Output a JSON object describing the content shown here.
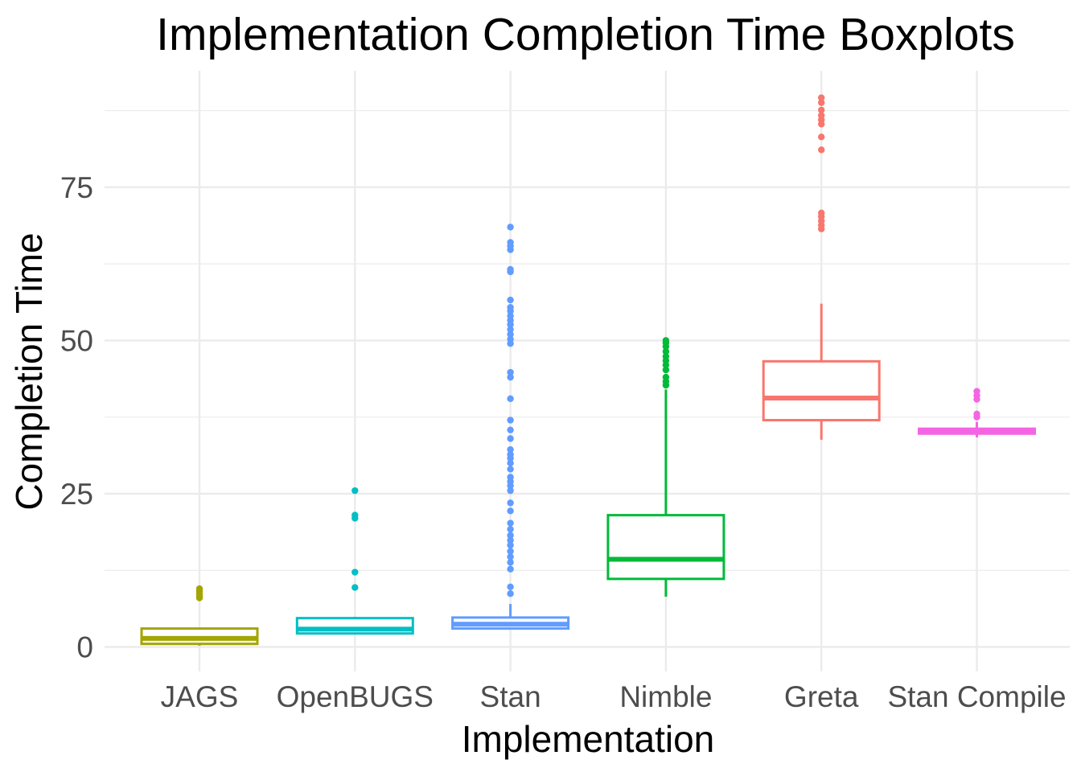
{
  "chart_data": {
    "type": "boxplot",
    "title": "Implementation Completion Time Boxplots",
    "xlabel": "Implementation",
    "ylabel": "Completion Time",
    "ylim": [
      -4,
      94
    ],
    "yticks": [
      0,
      25,
      50,
      75
    ],
    "grid": true,
    "legend": "none",
    "categories": [
      "JAGS",
      "OpenBUGS",
      "Stan",
      "Nimble",
      "Greta",
      "Stan Compile"
    ],
    "colors": [
      "#A3A500",
      "#00BFC4",
      "#619CFF",
      "#00BA38",
      "#F8766D",
      "#F564E3"
    ],
    "boxes": [
      {
        "category": "JAGS",
        "whisker_low": 0.2,
        "q1": 0.5,
        "median": 1.4,
        "q3": 3.0,
        "whisker_high": 3.1,
        "outliers": [
          8.0,
          8.3,
          8.7,
          9.1,
          9.5
        ]
      },
      {
        "category": "OpenBUGS",
        "whisker_low": 2.1,
        "q1": 2.2,
        "median": 2.9,
        "q3": 4.7,
        "whisker_high": 4.9,
        "outliers": [
          9.7,
          12.2,
          21.0,
          21.5,
          25.5
        ]
      },
      {
        "category": "Stan",
        "whisker_low": 2.9,
        "q1": 3.0,
        "median": 3.7,
        "q3": 4.8,
        "whisker_high": 7.0,
        "outliers": [
          8.7,
          9.8,
          12.7,
          13.8,
          14.7,
          15.6,
          16.6,
          17.4,
          18.2,
          19.2,
          20.2,
          22.2,
          23.5,
          25.5,
          26.3,
          27.0,
          27.7,
          29.0,
          30.0,
          30.8,
          31.4,
          32.2,
          34.0,
          35.4,
          37.0,
          40.5,
          44.0,
          44.8,
          49.5,
          50.2,
          51.0,
          51.8,
          52.6,
          53.3,
          54.0,
          54.8,
          55.4,
          56.6,
          61.2,
          61.6,
          64.8,
          65.4,
          66.0,
          68.5
        ]
      },
      {
        "category": "Nimble",
        "whisker_low": 8.2,
        "q1": 11.1,
        "median": 14.3,
        "q3": 21.5,
        "whisker_high": 42.0,
        "outliers": [
          42.7,
          43.3,
          44.0,
          45.2,
          46.0,
          46.7,
          47.4,
          48.2,
          49.0,
          49.6,
          50.0
        ]
      },
      {
        "category": "Greta",
        "whisker_low": 33.8,
        "q1": 37.0,
        "median": 40.6,
        "q3": 46.6,
        "whisker_high": 56.0,
        "outliers": [
          68.2,
          68.8,
          69.5,
          70.2,
          70.8,
          81.1,
          83.2,
          85.3,
          86.0,
          86.7,
          87.6,
          88.8,
          89.6
        ]
      },
      {
        "category": "Stan Compile",
        "whisker_low": 34.2,
        "q1": 34.8,
        "median": 35.2,
        "q3": 35.6,
        "whisker_high": 36.7,
        "outliers": [
          37.5,
          38.0,
          40.4,
          41.0,
          41.7
        ]
      }
    ]
  }
}
